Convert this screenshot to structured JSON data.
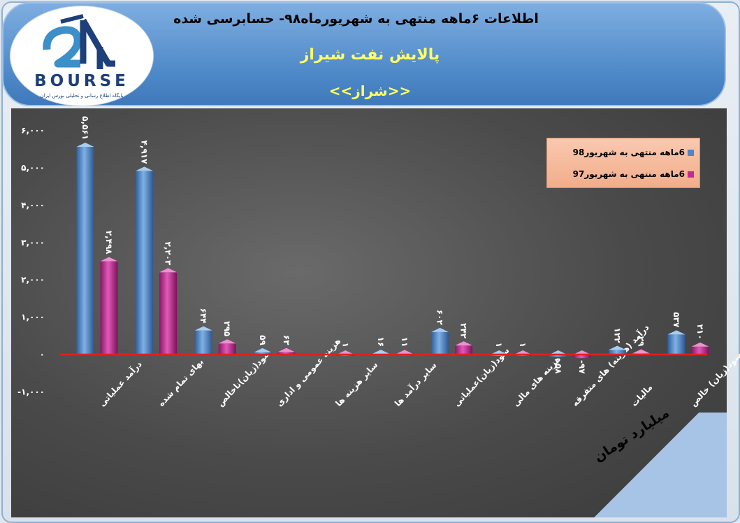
{
  "header": {
    "title": "اطلاعات ۶ماهه منتهی به شهریورماه۹۸- حسابرسی شده",
    "company": "پالایش نفت شیراز",
    "ticker": "<<شراز>>"
  },
  "logo": {
    "word": "BOURSE",
    "subtitle": "پایگاه اطلاع رسانی و تحلیلی بورس ایران"
  },
  "units_note": "ارقام به میلیارد تومان",
  "colors": {
    "series98": "#4f86c6",
    "series97": "#c42a93",
    "zero_line": "#e02020"
  },
  "chart_data": {
    "type": "bar",
    "categories": [
      "درآمد عملیاتی",
      "بهای تمام شده",
      "سود(زیان)ناخالص",
      "هزینه عمومی و اداری",
      "سایر هزینه ها",
      "سایر درآمد ها",
      "سود(زیان)عملیاتی",
      "هزینه های مالی",
      "درآمد (هزینه) های متفرقه",
      "مالیات",
      "سود(زیان) خالص"
    ],
    "series": [
      {
        "name": "6ماهه منتهی به شهریور98",
        "values": [
          5561,
          4917,
          644,
          59,
          null,
          16,
          602,
          1,
          -58,
          122,
          537
        ],
        "labels": [
          "۵,۵۶۱",
          "۴,۹۱۷",
          "۶۴۴",
          "۵۹",
          "",
          "۱۶",
          "۶۰۲",
          "۱",
          "-۵۸",
          "۱۲۲",
          "۵۳۷"
        ]
      },
      {
        "name": "6ماهه منتهی به شهریور97",
        "values": [
          2498,
          2203,
          295,
          63,
          1,
          11,
          242,
          1,
          -97,
          29,
          210
        ],
        "labels": [
          "۲,۴۹۸",
          "۲,۲۰۳",
          "۲۹۵",
          "۶۳",
          "۱",
          "۱۱",
          "۲۴۲",
          "۱",
          "-۹۷",
          "۲۹",
          "۲۱۰"
        ]
      }
    ],
    "yticks": [
      "-۱,۰۰۰",
      "۰",
      "۱,۰۰۰",
      "۲,۰۰۰",
      "۳,۰۰۰",
      "۴,۰۰۰",
      "۵,۰۰۰",
      "۶,۰۰۰"
    ],
    "ylim": [
      -1000,
      6000
    ],
    "grid": false,
    "legend": "top-right"
  }
}
